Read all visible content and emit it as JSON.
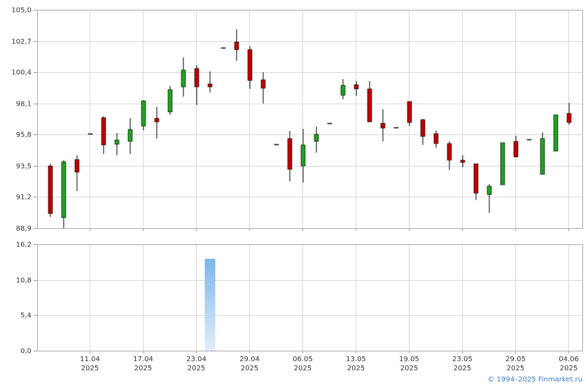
{
  "chart_data": {
    "type": "candlestick",
    "categories": [
      null,
      null,
      null,
      "11.04",
      null,
      null,
      null,
      "17.04",
      null,
      null,
      null,
      "23.04",
      null,
      null,
      null,
      "29.04",
      null,
      null,
      null,
      "06.05",
      null,
      null,
      null,
      "13.05",
      null,
      null,
      null,
      "19.05",
      null,
      null,
      null,
      "23.05",
      null,
      null,
      null,
      "29.05",
      null,
      null,
      null,
      "04.06"
    ],
    "year": "2025",
    "open": [
      93.49,
      89.68,
      93.96,
      95.87,
      97.05,
      95.09,
      95.3,
      96.43,
      97.0,
      97.47,
      99.32,
      100.67,
      99.53,
      102.21,
      102.63,
      102.06,
      99.84,
      95.09,
      95.51,
      93.49,
      95.3,
      96.64,
      98.7,
      99.48,
      99.17,
      96.64,
      96.33,
      98.24,
      96.9,
      95.87,
      95.14,
      93.91,
      93.65,
      91.38,
      92.1,
      95.3,
      95.45,
      92.87,
      94.58,
      97.36
    ],
    "high": [
      93.65,
      93.91,
      94.27,
      95.87,
      97.16,
      95.92,
      97.0,
      98.34,
      97.83,
      99.38,
      101.49,
      100.92,
      100.46,
      102.21,
      103.56,
      102.32,
      100.41,
      95.09,
      96.07,
      96.23,
      96.38,
      96.64,
      99.89,
      99.74,
      99.74,
      97.67,
      96.33,
      98.24,
      96.95,
      96.12,
      95.3,
      94.27,
      93.65,
      92.15,
      95.2,
      95.71,
      95.45,
      95.97,
      97.26,
      98.14
    ],
    "low": [
      89.73,
      88.9,
      91.64,
      95.87,
      94.37,
      94.27,
      94.37,
      96.12,
      95.51,
      97.26,
      98.6,
      97.98,
      98.91,
      102.21,
      101.23,
      99.17,
      98.09,
      95.09,
      92.36,
      92.26,
      94.47,
      96.64,
      98.4,
      98.65,
      96.74,
      95.3,
      96.33,
      96.43,
      95.04,
      94.83,
      93.18,
      93.39,
      90.97,
      90.04,
      92.1,
      94.11,
      95.45,
      92.87,
      94.58,
      96.54
    ],
    "close": [
      89.98,
      93.8,
      93.03,
      95.87,
      95.04,
      95.4,
      96.18,
      98.29,
      96.74,
      99.12,
      100.56,
      99.32,
      99.32,
      102.21,
      102.06,
      99.79,
      99.22,
      95.09,
      93.24,
      95.04,
      95.82,
      96.64,
      99.43,
      99.17,
      96.74,
      96.28,
      96.33,
      96.69,
      95.66,
      95.14,
      93.91,
      93.75,
      91.48,
      92.0,
      95.2,
      94.16,
      95.45,
      95.51,
      97.26,
      96.69
    ],
    "up_color": "#22a022",
    "down_color": "#c00000",
    "ylim": [
      88.9,
      105.0
    ],
    "yticks": [
      {
        "value": 88.9,
        "label": "88,9"
      },
      {
        "value": 91.2,
        "label": "91,2"
      },
      {
        "value": 93.5,
        "label": "93,5"
      },
      {
        "value": 95.8,
        "label": "95,8"
      },
      {
        "value": 98.1,
        "label": "98,1"
      },
      {
        "value": 100.4,
        "label": "100,4"
      },
      {
        "value": 102.7,
        "label": "102,7"
      },
      {
        "value": 105.0,
        "label": "105,0"
      }
    ],
    "volume": [
      0,
      0,
      0,
      0,
      0,
      0,
      0,
      0,
      0,
      0,
      0,
      0,
      14.0,
      0,
      0,
      0,
      0,
      0,
      0,
      0,
      0,
      0,
      0,
      0,
      0,
      0,
      0,
      0,
      0,
      0,
      0,
      0,
      0,
      0,
      0,
      0,
      0,
      0,
      0,
      0
    ],
    "volume_color": "#7ab6ea",
    "volume_ylim": [
      0,
      16.2
    ],
    "volume_yticks": [
      {
        "value": 0,
        "label": "0,0"
      },
      {
        "value": 5.4,
        "label": "5,4"
      },
      {
        "value": 10.8,
        "label": "10,8"
      },
      {
        "value": 16.2,
        "label": "16,2"
      }
    ],
    "grid": true,
    "watermark": "© 1994–2025 Finmarket.ru"
  }
}
